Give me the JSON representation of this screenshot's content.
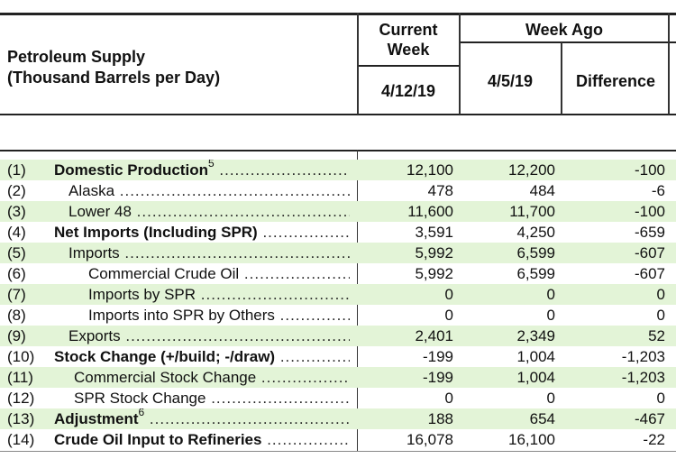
{
  "header": {
    "title_line1": "Petroleum Supply",
    "title_line2": "(Thousand Barrels per Day)",
    "current_week": "Current Week",
    "current_date": "4/12/19",
    "week_ago": "Week Ago",
    "week_ago_date": "4/5/19",
    "difference": "Difference"
  },
  "rows": [
    {
      "num": "(1)",
      "label": "Domestic Production",
      "sup": "5",
      "current": "12,100",
      "week_ago": "12,200",
      "difference": "-100"
    },
    {
      "num": "(2)",
      "label": "Alaska",
      "sup": "",
      "current": "478",
      "week_ago": "484",
      "difference": "-6"
    },
    {
      "num": "(3)",
      "label": "Lower 48",
      "sup": "",
      "current": "11,600",
      "week_ago": "11,700",
      "difference": "-100"
    },
    {
      "num": "(4)",
      "label": "Net Imports (Including SPR)",
      "sup": "",
      "current": "3,591",
      "week_ago": "4,250",
      "difference": "-659"
    },
    {
      "num": "(5)",
      "label": "Imports",
      "sup": "",
      "current": "5,992",
      "week_ago": "6,599",
      "difference": "-607"
    },
    {
      "num": "(6)",
      "label": "Commercial Crude Oil",
      "sup": "",
      "current": "5,992",
      "week_ago": "6,599",
      "difference": "-607"
    },
    {
      "num": "(7)",
      "label": "Imports by SPR",
      "sup": "",
      "current": "0",
      "week_ago": "0",
      "difference": "0"
    },
    {
      "num": "(8)",
      "label": "Imports into SPR by Others",
      "sup": "",
      "current": "0",
      "week_ago": "0",
      "difference": "0"
    },
    {
      "num": "(9)",
      "label": "Exports",
      "sup": "",
      "current": "2,401",
      "week_ago": "2,349",
      "difference": "52"
    },
    {
      "num": "(10)",
      "label": "Stock Change (+/build; -/draw)",
      "sup": "",
      "current": "-199",
      "week_ago": "1,004",
      "difference": "-1,203"
    },
    {
      "num": "(11)",
      "label": "Commercial Stock Change",
      "sup": "",
      "current": "-199",
      "week_ago": "1,004",
      "difference": "-1,203"
    },
    {
      "num": "(12)",
      "label": "SPR Stock Change",
      "sup": "",
      "current": "0",
      "week_ago": "0",
      "difference": "0"
    },
    {
      "num": "(13)",
      "label": "Adjustment",
      "sup": "6",
      "current": "188",
      "week_ago": "654",
      "difference": "-467"
    },
    {
      "num": "(14)",
      "label": "Crude Oil Input to Refineries",
      "sup": "",
      "current": "16,078",
      "week_ago": "16,100",
      "difference": "-22"
    }
  ]
}
